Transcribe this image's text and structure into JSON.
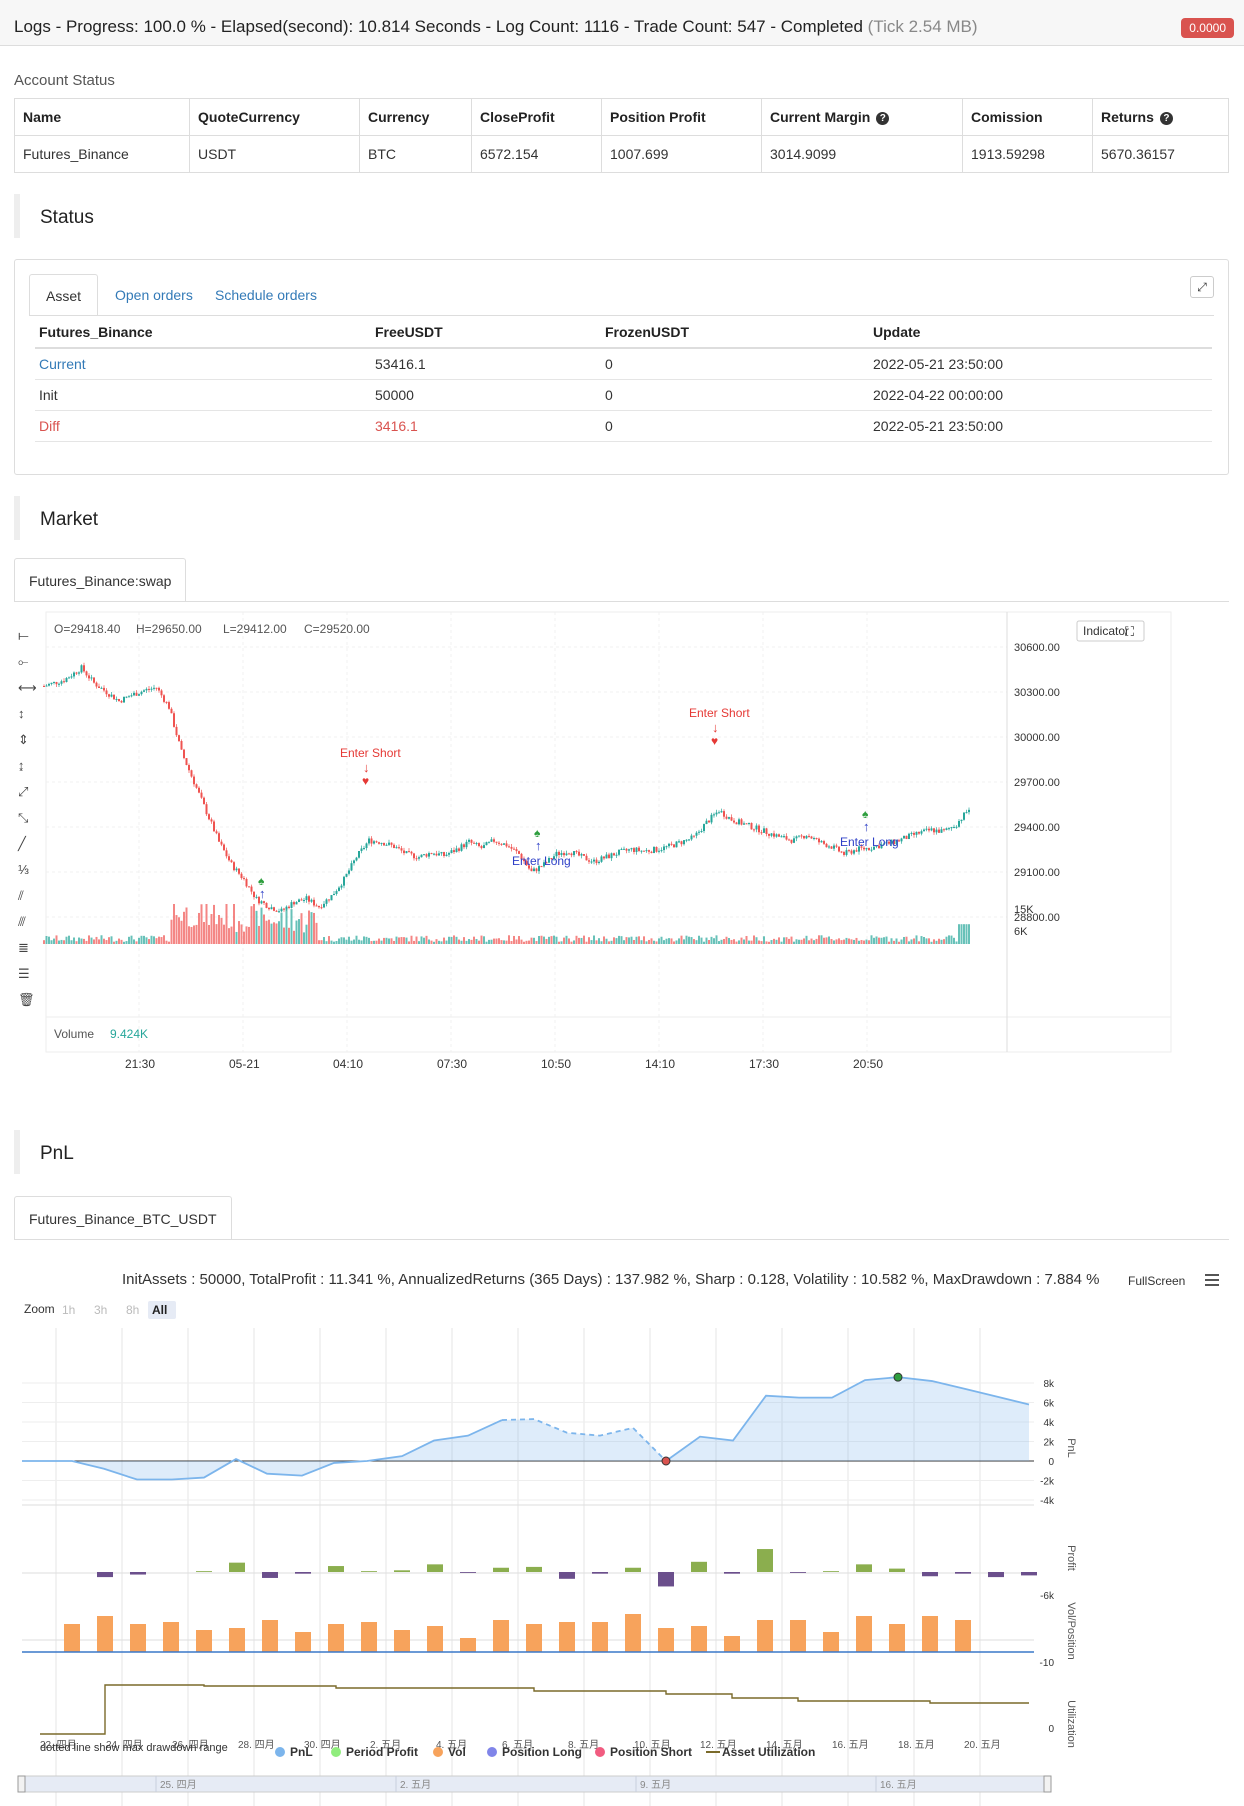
{
  "header": {
    "title_main": "Logs - Progress: 100.0 % - Elapsed(second): 10.814 Seconds - Log Count: 1116 - Trade Count: 547 - Completed",
    "title_muted": "(Tick 2.54 MB)",
    "badge": "0.0000"
  },
  "account": {
    "label": "Account Status",
    "headers": [
      "Name",
      "QuoteCurrency",
      "Currency",
      "CloseProfit",
      "Position Profit",
      "Current Margin",
      "Comission",
      "Returns"
    ],
    "row": [
      "Futures_Binance",
      "USDT",
      "BTC",
      "6572.154",
      "1007.699",
      "3014.9099",
      "1913.59298",
      "5670.36157"
    ]
  },
  "status": {
    "title": "Status",
    "tabs": [
      "Asset",
      "Open orders",
      "Schedule orders"
    ],
    "headers": [
      "Futures_Binance",
      "FreeUSDT",
      "FrozenUSDT",
      "Update"
    ],
    "rows": [
      [
        "Current",
        "53416.1",
        "0",
        "2022-05-21 23:50:00"
      ],
      [
        "Init",
        "50000",
        "0",
        "2022-04-22 00:00:00"
      ],
      [
        "Diff",
        "3416.1",
        "0",
        "2022-05-21 23:50:00"
      ]
    ]
  },
  "market": {
    "title": "Market",
    "tab": "Futures_Binance:swap",
    "ohlc": {
      "o": "O=29418.40",
      "h": "H=29650.00",
      "l": "L=29412.00",
      "c": "C=29520.00"
    },
    "indicator_label": "Indicator",
    "volume_label": "Volume",
    "volume_value": "9.424K",
    "price_ticks": [
      "30600.00",
      "30300.00",
      "30000.00",
      "29700.00",
      "29400.00",
      "29100.00",
      "28800.00"
    ],
    "volume_ticks": [
      "15K",
      "6K"
    ],
    "time_ticks": [
      "21:30",
      "05-21",
      "04:10",
      "07:30",
      "10:50",
      "14:10",
      "17:30",
      "20:50"
    ],
    "annotations": [
      "Enter Short",
      "Enter Long",
      "Enter Short",
      "Enter Long"
    ],
    "colors": {
      "up": "#26a69a",
      "down": "#ef5350",
      "long": "#2e40c7",
      "short": "#e53935"
    }
  },
  "pnl": {
    "title": "PnL",
    "tab": "Futures_Binance_BTC_USDT",
    "summary": "InitAssets : 50000, TotalProfit : 11.341 %, AnnualizedReturns (365 Days) : 137.982 %, Sharp : 0.128, Volatility : 10.582 %, MaxDrawdown : 7.884 %",
    "fullscreen": "FullScreen",
    "zoom_label": "Zoom",
    "zoom_buttons": [
      "1h",
      "3h",
      "8h",
      "All"
    ],
    "pnl_ticks": [
      "8k",
      "6k",
      "4k",
      "2k",
      "0",
      "-2k",
      "-4k"
    ],
    "profit_tick": "-6k",
    "vol_tick": "-10",
    "util_tick": "0",
    "axis_titles": [
      "PnL",
      "Profit",
      "Vol/Position",
      "Utilization"
    ],
    "date_ticks": [
      "22. 四月",
      "24. 四月",
      "26. 四月",
      "28. 四月",
      "30. 四月",
      "2. 五月",
      "4. 五月",
      "6. 五月",
      "8. 五月",
      "10. 五月",
      "12. 五月",
      "14. 五月",
      "16. 五月",
      "18. 五月",
      "20. 五月"
    ],
    "navigator_ticks": [
      "25. 四月",
      "2. 五月",
      "9. 五月",
      "16. 五月"
    ],
    "legend_note": "dotted line show max drawdown range",
    "legend": [
      {
        "label": "PnL",
        "color": "#7cb5ec"
      },
      {
        "label": "Period Profit",
        "color": "#90ed7d"
      },
      {
        "label": "Vol",
        "color": "#f7a35c"
      },
      {
        "label": "Position Long",
        "color": "#8085e9"
      },
      {
        "label": "Position Short",
        "color": "#f15c80"
      },
      {
        "label": "Asset Utilization",
        "color": "#7a6a2a"
      }
    ]
  }
}
